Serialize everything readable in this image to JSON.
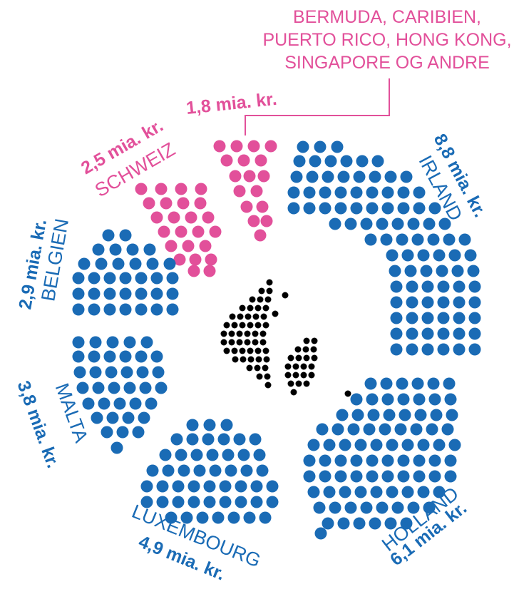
{
  "chart_data": {
    "type": "dot-sector",
    "unit": "mia. kr.",
    "colors": {
      "tax_haven": "#e2509a",
      "other": "#1a6bb5",
      "denmark": "#000000"
    },
    "categories": [
      "Bermuda, Caribien, Puerto Rico, Hong Kong, Singapore og andre",
      "Schweiz",
      "Belgien",
      "Malta",
      "Luxembourg",
      "Holland",
      "Irland"
    ],
    "series": [
      {
        "country": "",
        "value_label": "1,8 mia. kr.",
        "value": 1.8,
        "color": "#e2509a"
      },
      {
        "country": "SCHWEIZ",
        "value_label": "2,5 mia. kr.",
        "value": 2.5,
        "color": "#e2509a"
      },
      {
        "country": "BELGIEN",
        "value_label": "2,9 mia. kr.",
        "value": 2.9,
        "color": "#1a6bb5"
      },
      {
        "country": "MALTA",
        "value_label": "3,8 mia. kr.",
        "value": 3.8,
        "color": "#1a6bb5"
      },
      {
        "country": "LUXEMBOURG",
        "value_label": "4,9 mia. kr.",
        "value": 4.9,
        "color": "#1a6bb5"
      },
      {
        "country": "HOLLAND",
        "value_label": "6,1 mia. kr.",
        "value": 6.1,
        "color": "#1a6bb5"
      },
      {
        "country": "IRLAND",
        "value_label": "8,8 mia. kr.",
        "value": 8.8,
        "color": "#1a6bb5"
      }
    ],
    "callout_lines": [
      "BERMUDA, CARIBIEN,",
      "PUERTO RICO, HONG KONG,",
      "SINGAPORE OG ANDRE"
    ],
    "center_shape": "denmark-map"
  }
}
